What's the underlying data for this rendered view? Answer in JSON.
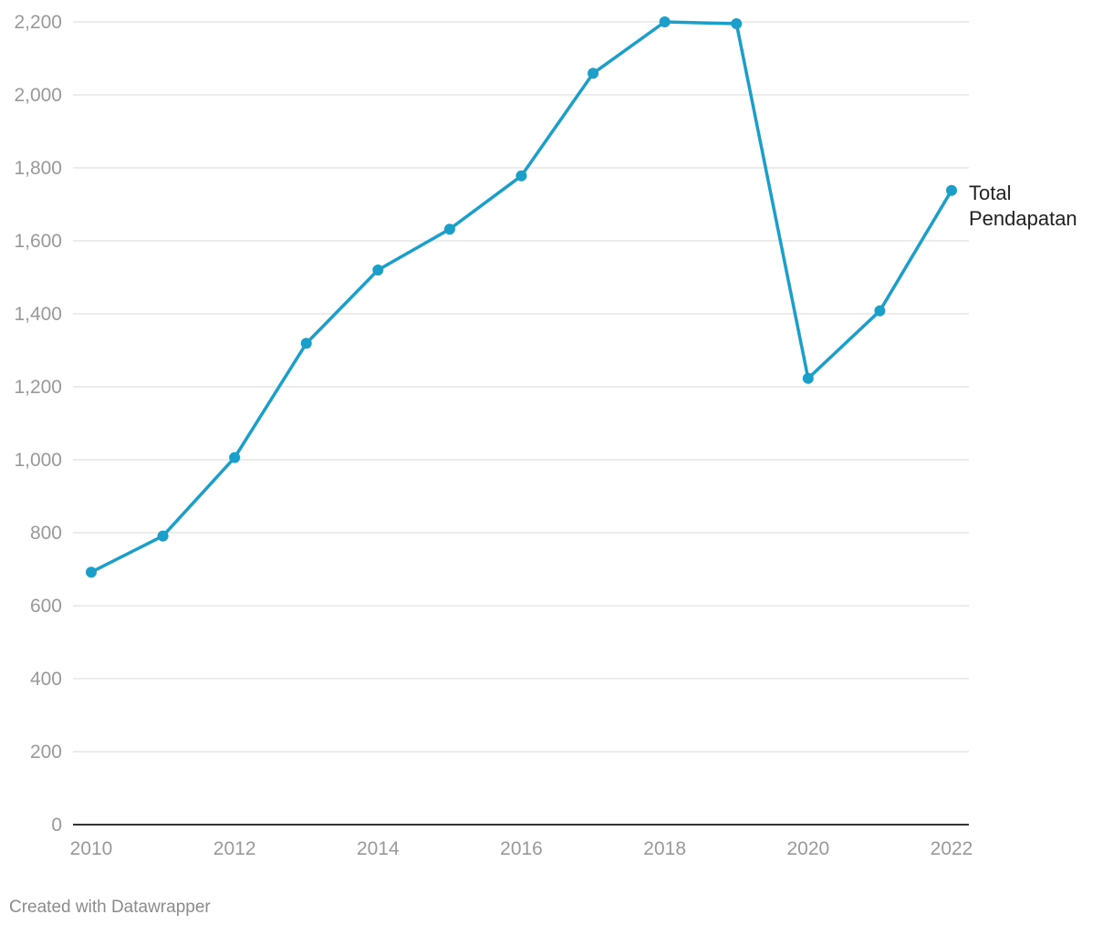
{
  "chart_data": {
    "type": "line",
    "title": "",
    "xlabel": "",
    "ylabel": "",
    "x": [
      2010,
      2011,
      2012,
      2013,
      2014,
      2015,
      2016,
      2017,
      2018,
      2019,
      2020,
      2021,
      2022
    ],
    "series": [
      {
        "name": "Total Pendapatan",
        "values": [
          692,
          791,
          1006,
          1319,
          1520,
          1632,
          1778,
          2059,
          2200,
          2195,
          1223,
          1408,
          1738
        ],
        "color": "#1a9fcb"
      }
    ],
    "ylim": [
      0,
      2200
    ],
    "yticks": [
      0,
      200,
      400,
      600,
      800,
      1000,
      1200,
      1400,
      1600,
      1800,
      2000,
      2200
    ],
    "ytick_labels": [
      "0",
      "200",
      "400",
      "600",
      "800",
      "1,000",
      "1,200",
      "1,400",
      "1,600",
      "1,800",
      "2,000",
      "2,200"
    ],
    "xticks": [
      2010,
      2012,
      2014,
      2016,
      2018,
      2020,
      2022
    ],
    "xtick_labels": [
      "2010",
      "2012",
      "2014",
      "2016",
      "2018",
      "2020",
      "2022"
    ],
    "grid": true,
    "label_lines": [
      "Total",
      "Pendapatan"
    ]
  },
  "footer": {
    "credit": "Created with Datawrapper"
  }
}
